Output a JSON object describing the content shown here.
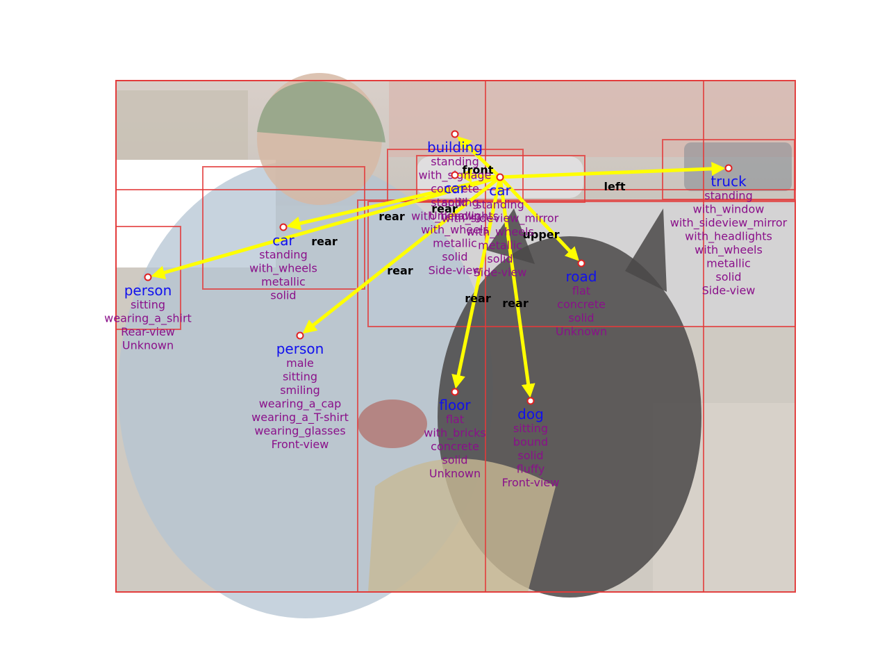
{
  "colors": {
    "box": "#e23b3b",
    "arrow": "#ffff00",
    "name": "#1010ee",
    "attribute": "#8a108a",
    "relation": "#000000"
  },
  "nodes": [
    {
      "id": "building",
      "name": "building",
      "attributes": [
        "standing",
        "with_signage",
        "concrete",
        "solid",
        "Unknown"
      ]
    },
    {
      "id": "car_back",
      "name": "car",
      "attributes": [
        "standing",
        "with_headlights",
        "with_wheels",
        "metallic",
        "solid",
        "Side-view"
      ]
    },
    {
      "id": "car_center",
      "name": "car",
      "attributes": [
        "standing",
        "with_sideview_mirror",
        "with_wheels",
        "metallic",
        "solid",
        "Side-view"
      ]
    },
    {
      "id": "truck",
      "name": "truck",
      "attributes": [
        "standing",
        "with_window",
        "with_sideview_mirror",
        "with_headlights",
        "with_wheels",
        "metallic",
        "solid",
        "Side-view"
      ]
    },
    {
      "id": "car_left",
      "name": "car",
      "attributes": [
        "standing",
        "with_wheels",
        "metallic",
        "solid"
      ]
    },
    {
      "id": "person_left",
      "name": "person",
      "attributes": [
        "sitting",
        "wearing_a_shirt",
        "Rear-view",
        "Unknown"
      ]
    },
    {
      "id": "road",
      "name": "road",
      "attributes": [
        "flat",
        "concrete",
        "solid",
        "Unknown"
      ]
    },
    {
      "id": "person_main",
      "name": "person",
      "attributes": [
        "male",
        "sitting",
        "smiling",
        "wearing_a_cap",
        "wearing_a_T-shirt",
        "wearing_glasses",
        "Front-view"
      ]
    },
    {
      "id": "floor",
      "name": "floor",
      "attributes": [
        "flat",
        "with_bricks",
        "concrete",
        "solid",
        "Unknown"
      ]
    },
    {
      "id": "dog",
      "name": "dog",
      "attributes": [
        "sitting",
        "bound",
        "solid",
        "fluffy",
        "Front-view"
      ]
    }
  ],
  "relations": [
    {
      "from": "car_center",
      "to": "building",
      "label": "front"
    },
    {
      "from": "car_center",
      "to": "truck",
      "label": "left"
    },
    {
      "from": "car_center",
      "to": "car_left",
      "label": "rear"
    },
    {
      "from": "car_center",
      "to": "person_left",
      "label": "rear"
    },
    {
      "from": "car_center",
      "to": "road",
      "label": "upper"
    },
    {
      "from": "car_center",
      "to": "person_main",
      "label": "rear"
    },
    {
      "from": "car_center",
      "to": "floor",
      "label": "rear"
    },
    {
      "from": "car_center",
      "to": "dog",
      "label": "rear"
    },
    {
      "from": "car_center",
      "to": "car_back",
      "label": "rear"
    }
  ]
}
